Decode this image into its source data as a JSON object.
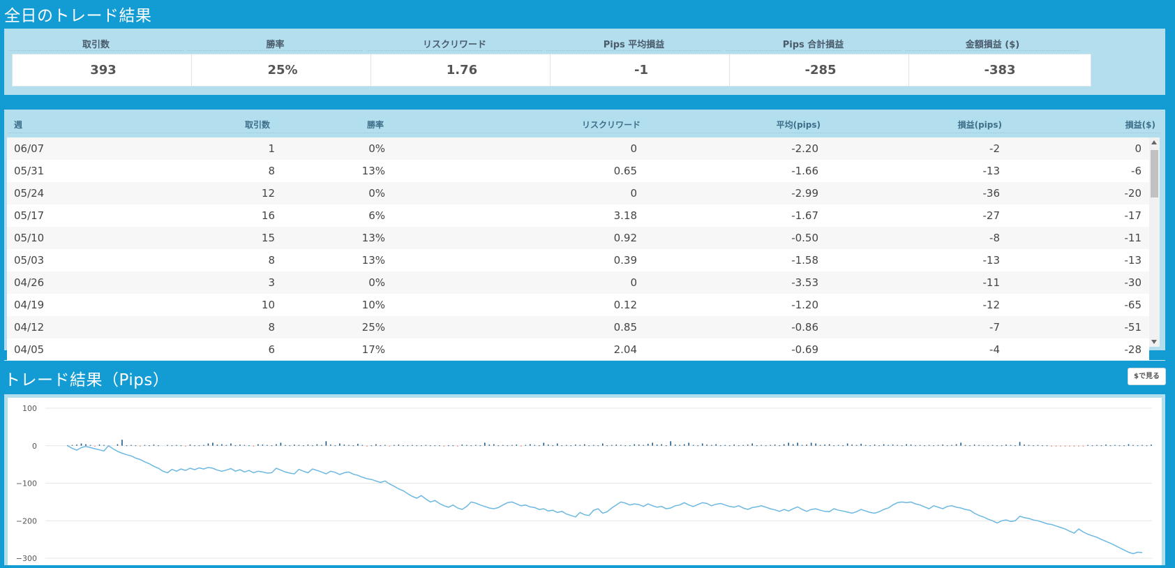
{
  "summary": {
    "title": "全日のトレード結果",
    "stats": [
      {
        "label": "取引数",
        "value": "393"
      },
      {
        "label": "勝率",
        "value": "25%"
      },
      {
        "label": "リスクリワード",
        "value": "1.76"
      },
      {
        "label": "Pips 平均損益",
        "value": "-1"
      },
      {
        "label": "Pips 合計損益",
        "value": "-285"
      },
      {
        "label": "金額損益 ($)",
        "value": "-383"
      }
    ]
  },
  "weekly_table": {
    "headers": [
      "週",
      "取引数",
      "勝率",
      "リスクリワード",
      "平均(pips)",
      "損益(pips)",
      "損益($)"
    ],
    "rows": [
      [
        "06/07",
        "1",
        "0%",
        "0",
        "-2.20",
        "-2",
        "0"
      ],
      [
        "05/31",
        "8",
        "13%",
        "0.65",
        "-1.66",
        "-13",
        "-6"
      ],
      [
        "05/24",
        "12",
        "0%",
        "0",
        "-2.99",
        "-36",
        "-20"
      ],
      [
        "05/17",
        "16",
        "6%",
        "3.18",
        "-1.67",
        "-27",
        "-17"
      ],
      [
        "05/10",
        "15",
        "13%",
        "0.92",
        "-0.50",
        "-8",
        "-11"
      ],
      [
        "05/03",
        "8",
        "13%",
        "0.39",
        "-1.58",
        "-13",
        "-13"
      ],
      [
        "04/26",
        "3",
        "0%",
        "0",
        "-3.53",
        "-11",
        "-30"
      ],
      [
        "04/19",
        "10",
        "10%",
        "0.12",
        "-1.20",
        "-12",
        "-65"
      ],
      [
        "04/12",
        "8",
        "25%",
        "0.85",
        "-0.86",
        "-7",
        "-51"
      ],
      [
        "04/05",
        "6",
        "17%",
        "2.04",
        "-0.69",
        "-4",
        "-28"
      ]
    ]
  },
  "chart_section": {
    "title": "トレード結果（Pips）",
    "toggle_label": "$で見る"
  },
  "chart_data": {
    "type": "line",
    "series": [
      {
        "values": [
          0,
          -7,
          -12,
          -5,
          -2,
          -5,
          -8,
          -11,
          -14,
          0,
          -8,
          -15,
          -20,
          -24,
          -27,
          -33,
          -37,
          -43,
          -48,
          -55,
          -60,
          -68,
          -72,
          -63,
          -68,
          -62,
          -66,
          -60,
          -64,
          -59,
          -62,
          -58,
          -60,
          -65,
          -68,
          -65,
          -61,
          -68,
          -64,
          -70,
          -66,
          -72,
          -68,
          -70,
          -73,
          -72,
          -60,
          -65,
          -70,
          -73,
          -75,
          -63,
          -68,
          -72,
          -62,
          -66,
          -70,
          -75,
          -68,
          -71,
          -77,
          -72,
          -70,
          -76,
          -79,
          -84,
          -88,
          -90,
          -94,
          -98,
          -94,
          -102,
          -108,
          -115,
          -120,
          -128,
          -135,
          -140,
          -133,
          -142,
          -150,
          -146,
          -154,
          -160,
          -164,
          -158,
          -166,
          -170,
          -162,
          -150,
          -153,
          -158,
          -162,
          -166,
          -168,
          -165,
          -158,
          -152,
          -150,
          -155,
          -160,
          -158,
          -163,
          -165,
          -170,
          -168,
          -174,
          -172,
          -178,
          -175,
          -182,
          -186,
          -190,
          -178,
          -184,
          -186,
          -172,
          -168,
          -180,
          -176,
          -166,
          -158,
          -150,
          -153,
          -158,
          -155,
          -157,
          -162,
          -155,
          -160,
          -164,
          -162,
          -168,
          -166,
          -160,
          -158,
          -152,
          -158,
          -162,
          -157,
          -152,
          -154,
          -160,
          -156,
          -154,
          -158,
          -162,
          -164,
          -160,
          -166,
          -170,
          -165,
          -163,
          -160,
          -164,
          -168,
          -171,
          -175,
          -170,
          -174,
          -168,
          -163,
          -170,
          -175,
          -170,
          -168,
          -172,
          -175,
          -176,
          -168,
          -172,
          -174,
          -177,
          -180,
          -176,
          -170,
          -174,
          -178,
          -180,
          -176,
          -170,
          -166,
          -158,
          -152,
          -150,
          -152,
          -150,
          -155,
          -158,
          -163,
          -168,
          -160,
          -164,
          -168,
          -162,
          -160,
          -164,
          -166,
          -170,
          -172,
          -180,
          -186,
          -190,
          -196,
          -200,
          -206,
          -200,
          -198,
          -202,
          -200,
          -188,
          -192,
          -194,
          -198,
          -200,
          -204,
          -208,
          -210,
          -214,
          -218,
          -222,
          -228,
          -233,
          -222,
          -230,
          -236,
          -240,
          -244,
          -250,
          -255,
          -260,
          -266,
          -272,
          -278,
          -284,
          -288,
          -284,
          -285
        ],
        "bars": [
          1,
          2,
          3,
          6,
          4,
          2,
          -2,
          3,
          2,
          1,
          0,
          4,
          16,
          1,
          2,
          1,
          -2,
          2,
          1,
          3,
          1,
          0,
          2,
          1,
          2,
          1,
          -1,
          3,
          1,
          1,
          2,
          6,
          8,
          3,
          4,
          2,
          6,
          1,
          3,
          2,
          1,
          -2,
          4,
          3,
          2,
          1,
          4,
          8,
          2,
          1,
          3,
          2,
          1,
          3,
          1,
          4,
          2,
          12,
          3,
          1,
          6,
          3,
          2,
          1,
          5,
          2,
          -2,
          1,
          4,
          1,
          2,
          -1,
          2,
          3,
          1,
          1,
          2,
          1,
          1,
          2,
          1,
          1,
          1,
          -2,
          1,
          1,
          -1,
          3,
          2,
          1,
          2,
          1,
          8,
          3,
          4,
          1,
          2,
          1,
          2,
          3,
          -1,
          2,
          4,
          2,
          1,
          8,
          3,
          1,
          6,
          1,
          2,
          1,
          3,
          2,
          4,
          1,
          2,
          1,
          6,
          1,
          2,
          3,
          2,
          1,
          1,
          4,
          3,
          2,
          5,
          8,
          3,
          4,
          1,
          12,
          3,
          2,
          4,
          8,
          2,
          1,
          6,
          3,
          2,
          4,
          1,
          2,
          1,
          3,
          1,
          2,
          3,
          6,
          1,
          2,
          1,
          2,
          3,
          1,
          4,
          8,
          4,
          8,
          2,
          3,
          8,
          6,
          2,
          3,
          4,
          1,
          2,
          1,
          6,
          3,
          2,
          5,
          2,
          1,
          3,
          1,
          4,
          2,
          3,
          2,
          1,
          4,
          3,
          1,
          2,
          1,
          2,
          1,
          2,
          3,
          1,
          2,
          4,
          8,
          2,
          1,
          3,
          2,
          1,
          1,
          2,
          1,
          1,
          3,
          2,
          1,
          10,
          3,
          2,
          1,
          2,
          1,
          1,
          -2,
          -2,
          -1,
          -2,
          -1,
          -2,
          -1,
          -1,
          2,
          1,
          2,
          1,
          3,
          1,
          2,
          1,
          1,
          4,
          2,
          1,
          2,
          1,
          3
        ]
      }
    ],
    "ylim": [
      -300,
      100
    ],
    "yticks": [
      "100",
      "0",
      "−100",
      "−200",
      "−300"
    ],
    "grid": true,
    "colors": {
      "line": "#6cb8e0",
      "bar_pos": "#1a5a8a",
      "bar_neg": "#e07060"
    }
  },
  "icons": {
    "scroll_up": "scroll-up-arrow-icon",
    "scroll_down": "scroll-down-arrow-icon"
  }
}
